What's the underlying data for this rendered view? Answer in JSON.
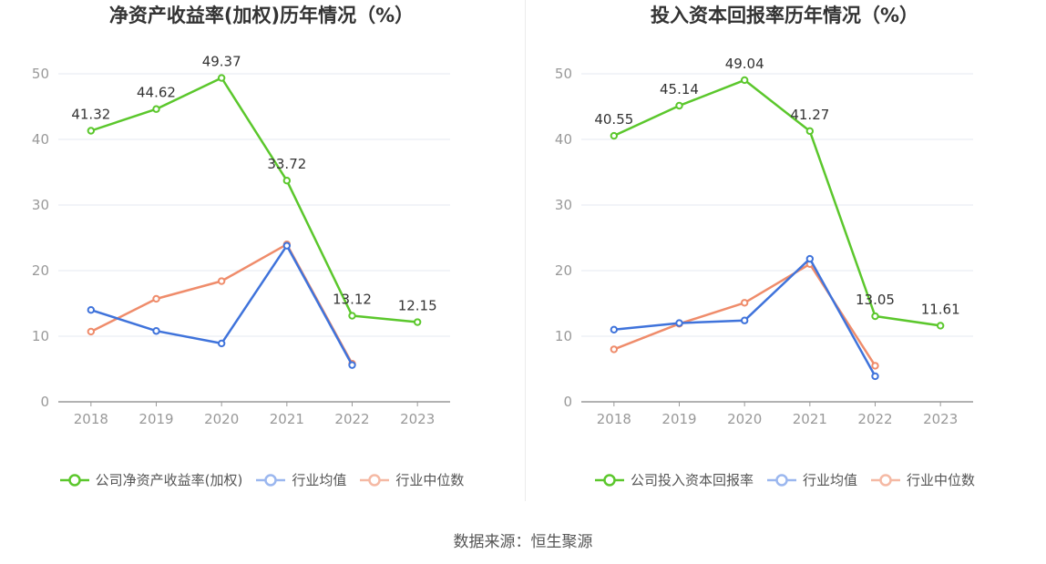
{
  "source": "数据来源：恒生聚源",
  "colors": {
    "company": "#5bc72c",
    "industry_avg": "#3f73db",
    "industry_median": "#ef8c6b",
    "grid": "#e6e9f2",
    "axis": "#999999",
    "tick_label": "#999999",
    "value_label": "#333333"
  },
  "chart_data": [
    {
      "type": "line",
      "title": "净资产收益率(加权)历年情况（%）",
      "categories": [
        "2018",
        "2019",
        "2020",
        "2021",
        "2022",
        "2023"
      ],
      "yticks": [
        "0",
        "10",
        "20",
        "30",
        "40",
        "50"
      ],
      "ylim": [
        0,
        50
      ],
      "grid": true,
      "legend_position": "bottom",
      "series": [
        {
          "name": "公司净资产收益率(加权)",
          "values": [
            41.32,
            44.62,
            49.37,
            33.72,
            13.12,
            12.15
          ],
          "labels": [
            "41.32",
            "44.62",
            "49.37",
            "33.72",
            "13.12",
            "12.15"
          ]
        },
        {
          "name": "行业均值",
          "values": [
            14.0,
            10.8,
            8.9,
            23.8,
            5.6,
            null
          ]
        },
        {
          "name": "行业中位数",
          "values": [
            10.7,
            15.7,
            18.4,
            24.0,
            5.8,
            null
          ]
        }
      ]
    },
    {
      "type": "line",
      "title": "投入资本回报率历年情况（%）",
      "categories": [
        "2018",
        "2019",
        "2020",
        "2021",
        "2022",
        "2023"
      ],
      "yticks": [
        "0",
        "10",
        "20",
        "30",
        "40",
        "50"
      ],
      "ylim": [
        0,
        50
      ],
      "grid": true,
      "legend_position": "bottom",
      "series": [
        {
          "name": "公司投入资本回报率",
          "values": [
            40.55,
            45.14,
            49.04,
            41.27,
            13.05,
            11.61
          ],
          "labels": [
            "40.55",
            "45.14",
            "49.04",
            "41.27",
            "13.05",
            "11.61"
          ]
        },
        {
          "name": "行业均值",
          "values": [
            11.0,
            12.0,
            12.4,
            21.8,
            3.9,
            null
          ]
        },
        {
          "name": "行业中位数",
          "values": [
            8.0,
            11.9,
            15.1,
            21.0,
            5.5,
            null
          ]
        }
      ]
    }
  ]
}
